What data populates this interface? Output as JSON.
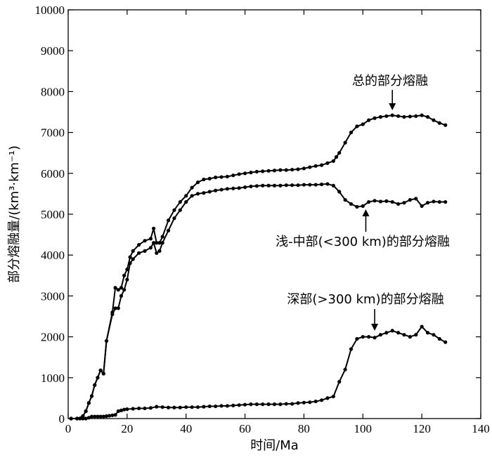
{
  "chart_data": {
    "type": "line",
    "title": "",
    "xlabel": "时间/Ma",
    "ylabel": "部分熔融量/(km³·km⁻¹)",
    "xlim": [
      0,
      140
    ],
    "ylim": [
      0,
      10000
    ],
    "x_ticks": [
      0,
      20,
      40,
      60,
      80,
      100,
      120,
      140
    ],
    "y_ticks": [
      0,
      1000,
      2000,
      3000,
      4000,
      5000,
      6000,
      7000,
      8000,
      9000,
      10000
    ],
    "grid": false,
    "series": [
      {
        "name": "总的部分熔融",
        "points": [
          [
            1,
            0
          ],
          [
            3,
            0
          ],
          [
            5,
            60
          ],
          [
            6,
            180
          ],
          [
            7,
            380
          ],
          [
            8,
            550
          ],
          [
            9,
            820
          ],
          [
            10,
            1000
          ],
          [
            11,
            1180
          ],
          [
            12,
            1100
          ],
          [
            13,
            1900
          ],
          [
            15,
            2600
          ],
          [
            16,
            3200
          ],
          [
            17,
            3150
          ],
          [
            18,
            3200
          ],
          [
            19,
            3500
          ],
          [
            20,
            3650
          ],
          [
            21,
            3950
          ],
          [
            22,
            4100
          ],
          [
            24,
            4250
          ],
          [
            26,
            4350
          ],
          [
            28,
            4400
          ],
          [
            29,
            4650
          ],
          [
            30,
            4300
          ],
          [
            31,
            4300
          ],
          [
            32,
            4450
          ],
          [
            34,
            4850
          ],
          [
            36,
            5100
          ],
          [
            38,
            5300
          ],
          [
            40,
            5450
          ],
          [
            42,
            5650
          ],
          [
            44,
            5780
          ],
          [
            46,
            5850
          ],
          [
            48,
            5870
          ],
          [
            50,
            5900
          ],
          [
            52,
            5910
          ],
          [
            54,
            5920
          ],
          [
            56,
            5950
          ],
          [
            58,
            5980
          ],
          [
            60,
            6000
          ],
          [
            62,
            6020
          ],
          [
            64,
            6040
          ],
          [
            66,
            6050
          ],
          [
            68,
            6060
          ],
          [
            70,
            6070
          ],
          [
            72,
            6080
          ],
          [
            74,
            6080
          ],
          [
            76,
            6090
          ],
          [
            78,
            6100
          ],
          [
            80,
            6120
          ],
          [
            82,
            6150
          ],
          [
            84,
            6180
          ],
          [
            86,
            6200
          ],
          [
            88,
            6250
          ],
          [
            90,
            6300
          ],
          [
            91,
            6400
          ],
          [
            92,
            6500
          ],
          [
            94,
            6750
          ],
          [
            96,
            7000
          ],
          [
            98,
            7150
          ],
          [
            100,
            7200
          ],
          [
            102,
            7300
          ],
          [
            104,
            7350
          ],
          [
            106,
            7380
          ],
          [
            108,
            7400
          ],
          [
            110,
            7420
          ],
          [
            112,
            7400
          ],
          [
            114,
            7380
          ],
          [
            116,
            7390
          ],
          [
            118,
            7400
          ],
          [
            120,
            7420
          ],
          [
            122,
            7380
          ],
          [
            124,
            7300
          ],
          [
            126,
            7230
          ],
          [
            128,
            7180
          ]
        ]
      },
      {
        "name": "浅-中部(<300 km)的部分熔融",
        "points": [
          [
            1,
            0
          ],
          [
            3,
            0
          ],
          [
            5,
            60
          ],
          [
            6,
            180
          ],
          [
            7,
            380
          ],
          [
            8,
            550
          ],
          [
            9,
            820
          ],
          [
            10,
            1000
          ],
          [
            11,
            1180
          ],
          [
            12,
            1100
          ],
          [
            13,
            1900
          ],
          [
            15,
            2550
          ],
          [
            16,
            2700
          ],
          [
            17,
            2700
          ],
          [
            18,
            3000
          ],
          [
            19,
            3150
          ],
          [
            20,
            3400
          ],
          [
            21,
            3800
          ],
          [
            22,
            3900
          ],
          [
            24,
            4050
          ],
          [
            26,
            4100
          ],
          [
            28,
            4180
          ],
          [
            29,
            4300
          ],
          [
            30,
            4050
          ],
          [
            31,
            4100
          ],
          [
            32,
            4300
          ],
          [
            34,
            4600
          ],
          [
            36,
            4900
          ],
          [
            38,
            5100
          ],
          [
            40,
            5300
          ],
          [
            42,
            5450
          ],
          [
            44,
            5500
          ],
          [
            46,
            5520
          ],
          [
            48,
            5550
          ],
          [
            50,
            5580
          ],
          [
            52,
            5600
          ],
          [
            54,
            5620
          ],
          [
            56,
            5630
          ],
          [
            58,
            5640
          ],
          [
            60,
            5660
          ],
          [
            62,
            5680
          ],
          [
            64,
            5690
          ],
          [
            66,
            5700
          ],
          [
            68,
            5700
          ],
          [
            70,
            5700
          ],
          [
            72,
            5700
          ],
          [
            74,
            5710
          ],
          [
            76,
            5710
          ],
          [
            78,
            5710
          ],
          [
            80,
            5720
          ],
          [
            82,
            5720
          ],
          [
            84,
            5720
          ],
          [
            86,
            5730
          ],
          [
            88,
            5740
          ],
          [
            90,
            5700
          ],
          [
            92,
            5550
          ],
          [
            94,
            5350
          ],
          [
            96,
            5250
          ],
          [
            98,
            5180
          ],
          [
            100,
            5200
          ],
          [
            102,
            5300
          ],
          [
            104,
            5330
          ],
          [
            106,
            5310
          ],
          [
            108,
            5320
          ],
          [
            110,
            5300
          ],
          [
            112,
            5250
          ],
          [
            114,
            5280
          ],
          [
            116,
            5350
          ],
          [
            118,
            5380
          ],
          [
            120,
            5200
          ],
          [
            122,
            5280
          ],
          [
            124,
            5310
          ],
          [
            126,
            5300
          ],
          [
            128,
            5300
          ]
        ]
      },
      {
        "name": "深部(>300 km)的部分熔融",
        "points": [
          [
            1,
            0
          ],
          [
            3,
            0
          ],
          [
            4,
            0
          ],
          [
            5,
            0
          ],
          [
            6,
            0
          ],
          [
            7,
            20
          ],
          [
            8,
            50
          ],
          [
            9,
            50
          ],
          [
            10,
            50
          ],
          [
            11,
            50
          ],
          [
            12,
            50
          ],
          [
            13,
            60
          ],
          [
            14,
            70
          ],
          [
            15,
            80
          ],
          [
            16,
            90
          ],
          [
            17,
            180
          ],
          [
            18,
            200
          ],
          [
            19,
            220
          ],
          [
            20,
            230
          ],
          [
            22,
            240
          ],
          [
            24,
            250
          ],
          [
            26,
            250
          ],
          [
            28,
            260
          ],
          [
            30,
            290
          ],
          [
            32,
            280
          ],
          [
            34,
            270
          ],
          [
            36,
            270
          ],
          [
            38,
            270
          ],
          [
            40,
            280
          ],
          [
            42,
            280
          ],
          [
            44,
            280
          ],
          [
            46,
            290
          ],
          [
            48,
            300
          ],
          [
            50,
            300
          ],
          [
            52,
            310
          ],
          [
            54,
            310
          ],
          [
            56,
            320
          ],
          [
            58,
            330
          ],
          [
            60,
            340
          ],
          [
            62,
            350
          ],
          [
            64,
            350
          ],
          [
            66,
            350
          ],
          [
            68,
            350
          ],
          [
            70,
            350
          ],
          [
            72,
            350
          ],
          [
            74,
            360
          ],
          [
            76,
            360
          ],
          [
            78,
            380
          ],
          [
            80,
            390
          ],
          [
            82,
            400
          ],
          [
            84,
            420
          ],
          [
            86,
            450
          ],
          [
            88,
            500
          ],
          [
            90,
            540
          ],
          [
            92,
            900
          ],
          [
            94,
            1200
          ],
          [
            96,
            1700
          ],
          [
            98,
            1950
          ],
          [
            100,
            2000
          ],
          [
            102,
            2000
          ],
          [
            104,
            1980
          ],
          [
            106,
            2050
          ],
          [
            108,
            2100
          ],
          [
            110,
            2150
          ],
          [
            112,
            2100
          ],
          [
            114,
            2050
          ],
          [
            116,
            2000
          ],
          [
            118,
            2050
          ],
          [
            120,
            2250
          ],
          [
            122,
            2100
          ],
          [
            124,
            2050
          ],
          [
            126,
            1950
          ],
          [
            128,
            1870
          ]
        ]
      }
    ],
    "annotations": [
      {
        "text": "总的部分熔融",
        "points_to": [
          110,
          7430
        ]
      },
      {
        "text": "浅-中部(<300 km)的部分熔融",
        "points_to": [
          101,
          5180
        ]
      },
      {
        "text": "深部(>300 km)的部分熔融",
        "points_to": [
          104,
          2000
        ]
      }
    ]
  }
}
